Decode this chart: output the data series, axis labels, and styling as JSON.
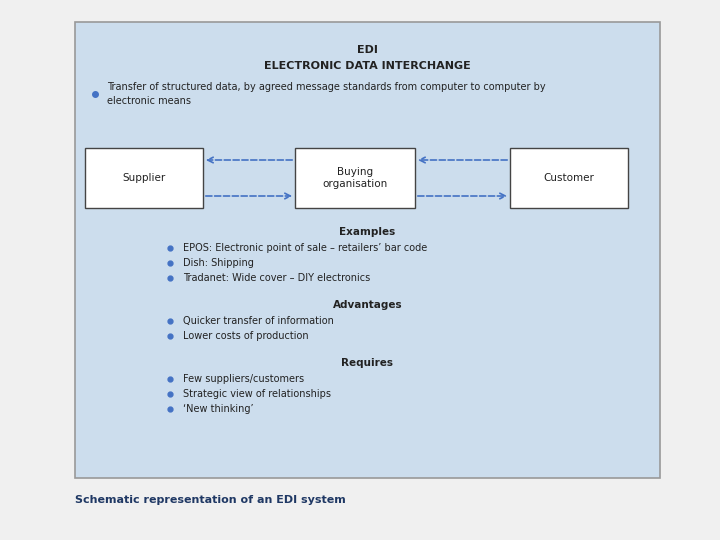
{
  "bg_color": "#f0f0f0",
  "panel_bg": "#ccdded",
  "panel_border": "#999999",
  "box_bg": "#ffffff",
  "box_border": "#444444",
  "arrow_color": "#4472c4",
  "bullet_color": "#4472c4",
  "title1": "EDI",
  "title2": "ELECTRONIC DATA INTERCHANGE",
  "intro_text": "Transfer of structured data, by agreed message standards from computer to computer by\nelectronic means",
  "box_supplier": "Supplier",
  "box_buying": "Buying\norganisation",
  "box_customer": "Customer",
  "examples_title": "Examples",
  "examples": [
    "EPOS: Electronic point of sale – retailers’ bar code",
    "Dish: Shipping",
    "Tradanet: Wide cover – DIY electronics"
  ],
  "advantages_title": "Advantages",
  "advantages": [
    "Quicker transfer of information",
    "Lower costs of production"
  ],
  "requires_title": "Requires",
  "requires": [
    "Few suppliers/customers",
    "Strategic view of relationships",
    "‘New thinking’"
  ],
  "caption": "Schematic representation of an EDI system",
  "caption_color": "#1f3864",
  "text_color": "#222222"
}
